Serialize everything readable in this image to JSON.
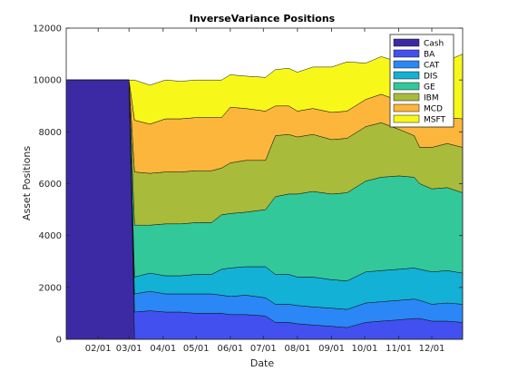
{
  "chart_data": {
    "type": "area",
    "title": "InverseVariance Positions",
    "xlabel": "Date",
    "ylabel": "Asset Positions",
    "ylim": [
      0,
      12000
    ],
    "yticks": [
      0,
      2000,
      4000,
      6000,
      8000,
      10000,
      12000
    ],
    "xticks": [
      "02/01",
      "03/01",
      "04/01",
      "05/01",
      "06/01",
      "07/01",
      "08/01",
      "09/01",
      "10/01",
      "11/01",
      "12/01"
    ],
    "x": [
      "2017-01-03",
      "2017-02-01",
      "2017-03-01",
      "2017-03-06",
      "2017-03-20",
      "2017-04-03",
      "2017-04-17",
      "2017-05-01",
      "2017-05-15",
      "2017-05-24",
      "2017-06-01",
      "2017-06-15",
      "2017-07-03",
      "2017-07-12",
      "2017-07-24",
      "2017-08-01",
      "2017-08-15",
      "2017-09-01",
      "2017-09-15",
      "2017-10-02",
      "2017-10-16",
      "2017-11-01",
      "2017-11-15",
      "2017-11-20",
      "2017-12-01",
      "2017-12-15",
      "2017-12-29"
    ],
    "grid": false,
    "legend_position": "top-right",
    "series": [
      {
        "name": "Cash",
        "color": "#3c2aa5",
        "values": [
          10000,
          10000,
          10000,
          0,
          0,
          0,
          0,
          0,
          0,
          0,
          0,
          0,
          0,
          0,
          0,
          0,
          0,
          0,
          0,
          0,
          0,
          0,
          0,
          0,
          0,
          0,
          0
        ]
      },
      {
        "name": "BA",
        "color": "#4250f0",
        "values": [
          0,
          0,
          0,
          1050,
          1100,
          1050,
          1050,
          1000,
          1000,
          1000,
          950,
          950,
          900,
          650,
          650,
          600,
          550,
          500,
          450,
          650,
          700,
          750,
          800,
          800,
          700,
          700,
          650
        ]
      },
      {
        "name": "CAT",
        "color": "#2a87f5",
        "values": [
          0,
          0,
          0,
          700,
          750,
          700,
          700,
          750,
          750,
          700,
          700,
          750,
          700,
          700,
          700,
          700,
          700,
          700,
          700,
          750,
          750,
          750,
          750,
          700,
          650,
          700,
          700
        ]
      },
      {
        "name": "DIS",
        "color": "#13b1d6",
        "values": [
          0,
          0,
          0,
          650,
          700,
          700,
          700,
          750,
          750,
          1000,
          1100,
          1100,
          1200,
          1150,
          1150,
          1100,
          1150,
          1100,
          1100,
          1200,
          1200,
          1200,
          1200,
          1200,
          1250,
          1250,
          1200
        ]
      },
      {
        "name": "GE",
        "color": "#33c89a",
        "values": [
          0,
          0,
          0,
          2000,
          1850,
          2000,
          2000,
          2000,
          2000,
          2100,
          2100,
          2100,
          2200,
          3000,
          3100,
          3200,
          3300,
          3300,
          3400,
          3500,
          3600,
          3600,
          3500,
          3300,
          3200,
          3200,
          3100
        ]
      },
      {
        "name": "IBM",
        "color": "#a8bb3b",
        "values": [
          0,
          0,
          0,
          2050,
          2000,
          2000,
          2000,
          2000,
          2000,
          1800,
          1950,
          2000,
          1900,
          2350,
          2300,
          2200,
          2200,
          2100,
          2100,
          2100,
          2100,
          1800,
          1600,
          1400,
          1600,
          1700,
          1750
        ]
      },
      {
        "name": "MCD",
        "color": "#fcb63b",
        "values": [
          0,
          0,
          0,
          2000,
          1900,
          2050,
          2050,
          2050,
          2050,
          1950,
          2150,
          2000,
          1900,
          1150,
          1100,
          1000,
          1000,
          1050,
          1050,
          1050,
          1100,
          1100,
          1000,
          900,
          1000,
          1000,
          1100
        ]
      },
      {
        "name": "MSFT",
        "color": "#f7f71a",
        "values": [
          0,
          0,
          0,
          1550,
          1500,
          1500,
          1450,
          1450,
          1450,
          1450,
          1250,
          1250,
          1300,
          1400,
          1450,
          1500,
          1600,
          1750,
          1900,
          1400,
          1450,
          1500,
          1600,
          1900,
          2100,
          2200,
          2500
        ]
      }
    ]
  }
}
